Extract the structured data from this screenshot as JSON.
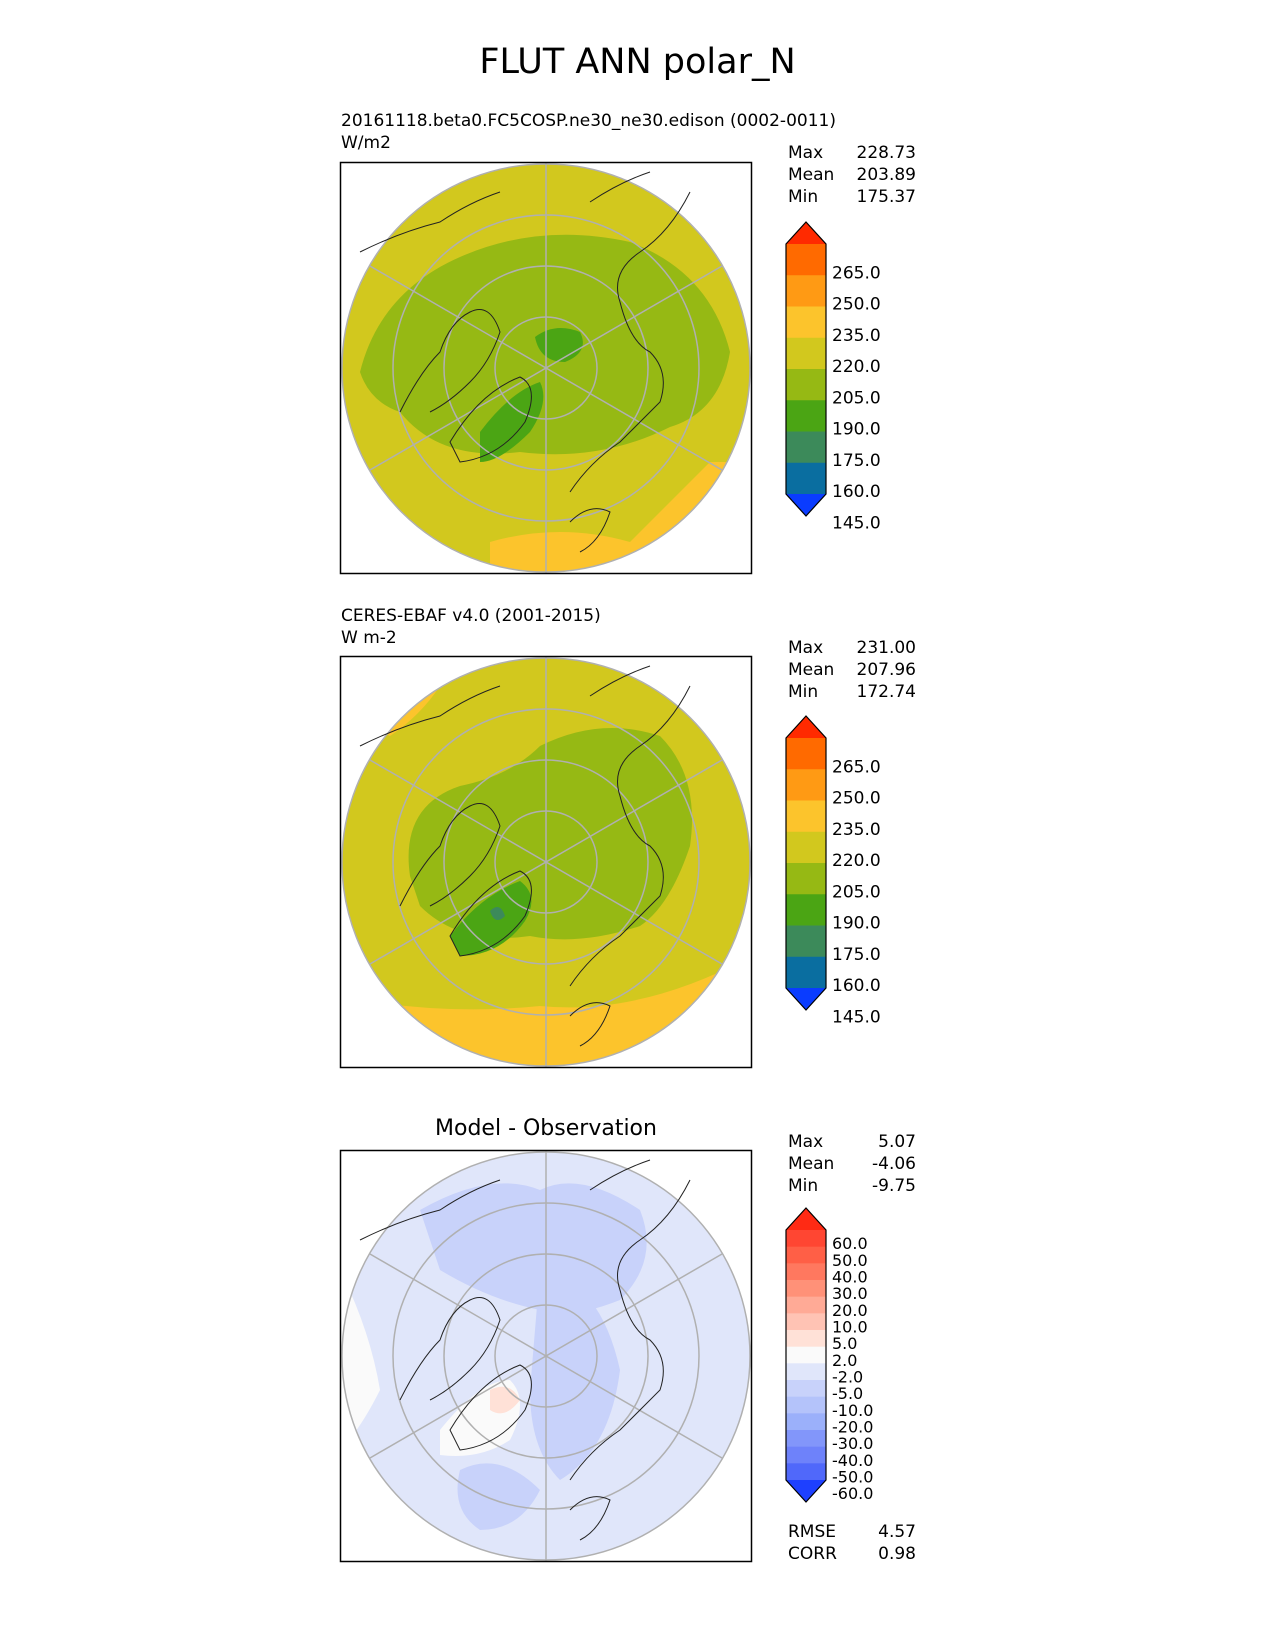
{
  "title": "FLUT ANN polar_N",
  "panels": [
    {
      "title_line1": "20161118.beta0.FC5COSP.ne30_ne30.edison (0002-0011)",
      "title_line2": "W/m2",
      "stats": [
        {
          "label": "Max",
          "value": "228.73"
        },
        {
          "label": "Mean",
          "value": "203.89"
        },
        {
          "label": "Min",
          "value": "175.37"
        }
      ],
      "colorbar": {
        "labels": [
          "265.0",
          "250.0",
          "235.0",
          "220.0",
          "205.0",
          "190.0",
          "175.0",
          "160.0",
          "145.0"
        ],
        "colors": [
          "#ff2a00",
          "#ff6a00",
          "#ff9a14",
          "#fcc42c",
          "#d2c81e",
          "#96b914",
          "#4ba514",
          "#3c8a5a",
          "#0a6ea0",
          "#0a3cff"
        ]
      }
    },
    {
      "title_line1": "CERES-EBAF v4.0 (2001-2015)",
      "title_line2": "W m-2",
      "stats": [
        {
          "label": "Max",
          "value": "231.00"
        },
        {
          "label": "Mean",
          "value": "207.96"
        },
        {
          "label": "Min",
          "value": "172.74"
        }
      ],
      "colorbar": {
        "labels": [
          "265.0",
          "250.0",
          "235.0",
          "220.0",
          "205.0",
          "190.0",
          "175.0",
          "160.0",
          "145.0"
        ],
        "colors": [
          "#ff2a00",
          "#ff6a00",
          "#ff9a14",
          "#fcc42c",
          "#d2c81e",
          "#96b914",
          "#4ba514",
          "#3c8a5a",
          "#0a6ea0",
          "#0a3cff"
        ]
      }
    },
    {
      "title_center": "Model - Observation",
      "stats": [
        {
          "label": "Max",
          "value": "5.07"
        },
        {
          "label": "Mean",
          "value": "-4.06"
        },
        {
          "label": "Min",
          "value": "-9.75"
        }
      ],
      "colorbar": {
        "labels": [
          "60.0",
          "50.0",
          "40.0",
          "30.0",
          "20.0",
          "10.0",
          "5.0",
          "2.0",
          "-2.0",
          "-5.0",
          "-10.0",
          "-20.0",
          "-30.0",
          "-40.0",
          "-50.0",
          "-60.0"
        ],
        "colors": [
          "#ff2a14",
          "#ff4632",
          "#ff5f46",
          "#ff785f",
          "#ff9178",
          "#ffaa96",
          "#ffc3b4",
          "#ffe1d7",
          "#fafafa",
          "#e0e6fa",
          "#c8d2fa",
          "#b4c3fa",
          "#9bb0fa",
          "#8296fa",
          "#6e82fa",
          "#5068fa",
          "#1e40ff"
        ]
      },
      "metrics": [
        {
          "label": "RMSE",
          "value": "4.57"
        },
        {
          "label": "CORR",
          "value": "0.98"
        }
      ]
    }
  ]
}
